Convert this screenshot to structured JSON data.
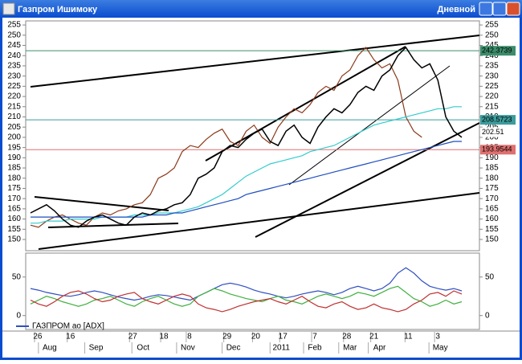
{
  "window": {
    "title": "Газпром Ишимоку",
    "timeframe": "Дневной"
  },
  "chart_data": [
    {
      "type": "line",
      "x": [
        0,
        1,
        2,
        3,
        4,
        5,
        6,
        7,
        8,
        9,
        10,
        11,
        12,
        13,
        14,
        15,
        16,
        17,
        18,
        19,
        20,
        21,
        22,
        23,
        24,
        25,
        26,
        27,
        28,
        29,
        30,
        31,
        32,
        33,
        34,
        35,
        36,
        37,
        38,
        39,
        40,
        41,
        42,
        43,
        44,
        45,
        46,
        47,
        48,
        49,
        50,
        51,
        52,
        53,
        54
      ],
      "xlim": [
        0,
        54
      ],
      "xticks": [
        {
          "value": 0.9,
          "label": "26"
        },
        {
          "value": 5.0,
          "label": "16"
        },
        {
          "value": 12.8,
          "label": "27"
        },
        {
          "value": 16.7,
          "label": "18"
        },
        {
          "value": 19.9,
          "label": "8"
        },
        {
          "value": 24.6,
          "label": "29"
        },
        {
          "value": 28.2,
          "label": "20"
        },
        {
          "value": 31.6,
          "label": "17"
        },
        {
          "value": 35.6,
          "label": "7"
        },
        {
          "value": 39.6,
          "label": "28"
        },
        {
          "value": 43.0,
          "label": "21"
        },
        {
          "value": 47.3,
          "label": "11"
        },
        {
          "value": 51.0,
          "label": "3"
        }
      ],
      "month_ticks": [
        {
          "value": 2.4,
          "label": "Aug"
        },
        {
          "value": 8.2,
          "label": "Sep"
        },
        {
          "value": 14.1,
          "label": "Oct"
        },
        {
          "value": 19.7,
          "label": "Nov"
        },
        {
          "value": 25.4,
          "label": "Dec"
        },
        {
          "value": 31.4,
          "label": "2011"
        },
        {
          "value": 35.6,
          "label": "Feb"
        },
        {
          "value": 40.0,
          "label": "Mar"
        },
        {
          "value": 43.7,
          "label": "Apr"
        },
        {
          "value": 51.3,
          "label": "May"
        }
      ],
      "ylim": [
        144.5,
        257
      ],
      "yticks": [
        150,
        155,
        160,
        165,
        170,
        175,
        180,
        185,
        190,
        195,
        200,
        205,
        210,
        215,
        220,
        225,
        230,
        235,
        240,
        245,
        250,
        255
      ],
      "series": [
        {
          "color": "#8b3a1a",
          "values": [
            157,
            156,
            159,
            161,
            162,
            160,
            158,
            157,
            161,
            163,
            162,
            164,
            165,
            167,
            168,
            172,
            180,
            182,
            185,
            193,
            196,
            195,
            199,
            202,
            204,
            198,
            196,
            203,
            206,
            200,
            197,
            205,
            210,
            214,
            212,
            216,
            222,
            225,
            223,
            230,
            233,
            240,
            244,
            238,
            234,
            236,
            228,
            210,
            203,
            200,
            null,
            null,
            null,
            null,
            null
          ]
        },
        {
          "color": "#33cccc",
          "values": [
            158,
            158,
            159,
            159,
            159,
            160,
            160,
            160,
            160,
            161,
            161,
            161,
            161,
            162,
            162,
            162,
            163,
            163,
            163,
            164,
            165,
            166,
            168,
            170,
            172,
            175,
            178,
            181,
            183,
            185,
            187,
            188,
            189,
            190,
            191,
            193,
            194,
            195,
            196,
            198,
            200,
            202,
            204,
            206,
            207,
            208,
            209,
            210,
            211,
            212,
            213,
            214,
            214,
            215,
            215
          ]
        },
        {
          "color": "#1f4fbf",
          "values": [
            161,
            161,
            161,
            161,
            161,
            161,
            161,
            161,
            161,
            161,
            161,
            161,
            161,
            161,
            161,
            162,
            162,
            162,
            163,
            163,
            164,
            165,
            166,
            167,
            168,
            169,
            170,
            172,
            173,
            174,
            175,
            176,
            177,
            178,
            179,
            180,
            181,
            182,
            183,
            184,
            185,
            186,
            187,
            188,
            189,
            190,
            191,
            192,
            193,
            194,
            195,
            196,
            197,
            198,
            198
          ]
        },
        {
          "color": "#000000",
          "values": [
            163,
            165,
            167,
            164,
            160,
            157,
            156,
            159,
            161,
            162,
            160,
            158,
            157,
            161,
            163,
            162,
            164,
            165,
            167,
            168,
            172,
            180,
            182,
            185,
            193,
            196,
            195,
            199,
            202,
            204,
            198,
            196,
            203,
            206,
            200,
            197,
            205,
            210,
            214,
            212,
            216,
            222,
            225,
            223,
            230,
            233,
            240,
            244,
            238,
            234,
            236,
            228,
            210,
            203,
            200
          ]
        }
      ],
      "hlines": [
        {
          "value": 242.3739,
          "color": "#3c8c6c"
        },
        {
          "value": 208.5723,
          "color": "#3c9c9c"
        },
        {
          "value": 202.51,
          "color": "#ffffff"
        },
        {
          "value": 193.9544,
          "color": "#e07070"
        }
      ]
    },
    {
      "type": "line",
      "x": [
        0,
        1,
        2,
        3,
        4,
        5,
        6,
        7,
        8,
        9,
        10,
        11,
        12,
        13,
        14,
        15,
        16,
        17,
        18,
        19,
        20,
        21,
        22,
        23,
        24,
        25,
        26,
        27,
        28,
        29,
        30,
        31,
        32,
        33,
        34,
        35,
        36,
        37,
        38,
        39,
        40,
        41,
        42,
        43,
        44,
        45,
        46,
        47,
        48,
        49,
        50,
        51,
        52,
        53,
        54
      ],
      "xlim": [
        0,
        54
      ],
      "ylim": [
        -18,
        81
      ],
      "yticks": [
        0,
        50
      ],
      "series": [
        {
          "name": "ГАЗПРОМ ао [ADX]",
          "color": "#3050c0",
          "values": [
            35,
            33,
            30,
            28,
            26,
            25,
            27,
            30,
            32,
            30,
            27,
            24,
            22,
            20,
            22,
            25,
            27,
            26,
            24,
            22,
            20,
            25,
            30,
            35,
            40,
            42,
            40,
            37,
            33,
            30,
            28,
            25,
            23,
            25,
            28,
            30,
            32,
            30,
            27,
            30,
            35,
            38,
            35,
            32,
            35,
            42,
            55,
            62,
            55,
            45,
            38,
            35,
            33,
            35,
            32
          ]
        },
        {
          "color": "#40b040",
          "values": [
            15,
            20,
            25,
            22,
            18,
            15,
            12,
            15,
            20,
            22,
            25,
            20,
            15,
            12,
            18,
            22,
            25,
            20,
            15,
            12,
            15,
            25,
            30,
            35,
            32,
            28,
            25,
            22,
            20,
            18,
            22,
            25,
            20,
            18,
            15,
            20,
            25,
            28,
            25,
            22,
            25,
            30,
            28,
            25,
            30,
            35,
            38,
            30,
            22,
            18,
            12,
            15,
            20,
            15,
            18
          ]
        },
        {
          "color": "#c03030",
          "values": [
            20,
            15,
            12,
            18,
            25,
            30,
            32,
            28,
            22,
            18,
            20,
            25,
            28,
            30,
            22,
            18,
            15,
            20,
            25,
            28,
            25,
            15,
            10,
            8,
            5,
            8,
            12,
            15,
            18,
            20,
            22,
            18,
            15,
            20,
            25,
            18,
            12,
            10,
            15,
            18,
            12,
            8,
            10,
            15,
            10,
            8,
            5,
            8,
            15,
            20,
            28,
            30,
            25,
            32,
            28
          ]
        }
      ]
    }
  ]
}
